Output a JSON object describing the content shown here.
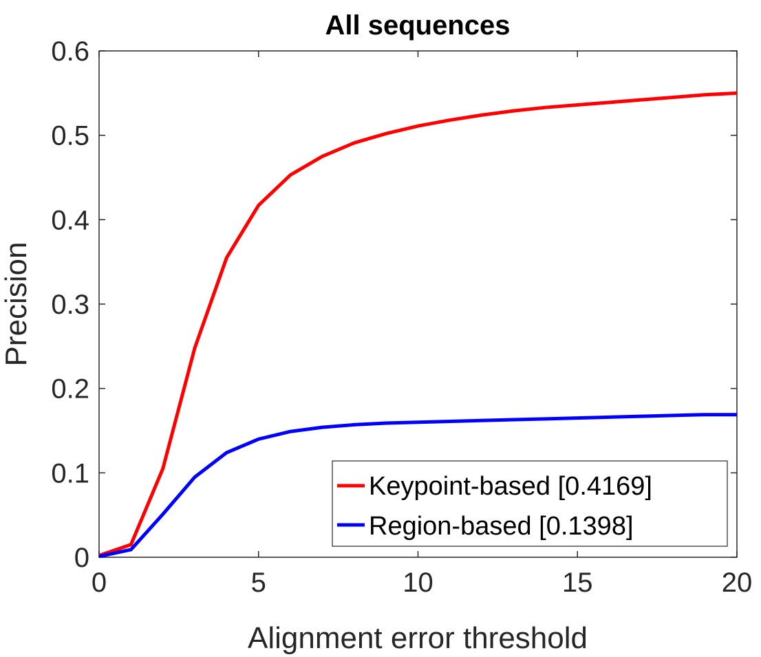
{
  "chart_data": {
    "type": "line",
    "title": "All sequences",
    "xlabel": "Alignment error threshold",
    "ylabel": "Precision",
    "xlim": [
      0,
      20
    ],
    "ylim": [
      0,
      0.6
    ],
    "xticks": [
      "0",
      "5",
      "10",
      "15",
      "20"
    ],
    "yticks": [
      "0",
      "0.1",
      "0.2",
      "0.3",
      "0.4",
      "0.5",
      "0.6"
    ],
    "grid": false,
    "legend_position": "bottom-right",
    "x": [
      0,
      1,
      2,
      3,
      4,
      5,
      6,
      7,
      8,
      9,
      10,
      11,
      12,
      13,
      14,
      15,
      16,
      17,
      18,
      19,
      20
    ],
    "series": [
      {
        "name": "Keypoint-based [0.4169]",
        "color": "#ff0000",
        "values": [
          0.002,
          0.015,
          0.105,
          0.248,
          0.355,
          0.417,
          0.453,
          0.475,
          0.491,
          0.502,
          0.511,
          0.518,
          0.524,
          0.529,
          0.533,
          0.536,
          0.539,
          0.542,
          0.545,
          0.548,
          0.55
        ]
      },
      {
        "name": "Region-based [0.1398]",
        "color": "#0000ff",
        "values": [
          0.001,
          0.009,
          0.051,
          0.095,
          0.124,
          0.14,
          0.149,
          0.154,
          0.157,
          0.159,
          0.16,
          0.161,
          0.162,
          0.163,
          0.164,
          0.165,
          0.166,
          0.167,
          0.168,
          0.169,
          0.169
        ]
      }
    ]
  }
}
